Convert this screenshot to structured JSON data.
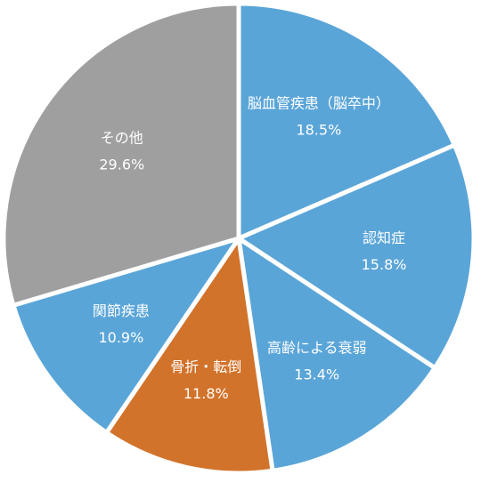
{
  "chart_data": {
    "type": "pie",
    "categories": [
      "脳血管疾患（脳卒中）",
      "認知症",
      "高齢による衰弱",
      "骨折・転倒",
      "関節疾患",
      "その他"
    ],
    "values": [
      18.5,
      15.8,
      13.4,
      11.8,
      10.9,
      29.6
    ],
    "value_labels": [
      "18.5%",
      "15.8%",
      "13.4%",
      "11.8%",
      "10.9%",
      "29.6%"
    ],
    "colors": [
      "#5aa5d8",
      "#5aa5d8",
      "#5aa5d8",
      "#d2732b",
      "#5aa5d8",
      "#9f9f9f"
    ]
  }
}
